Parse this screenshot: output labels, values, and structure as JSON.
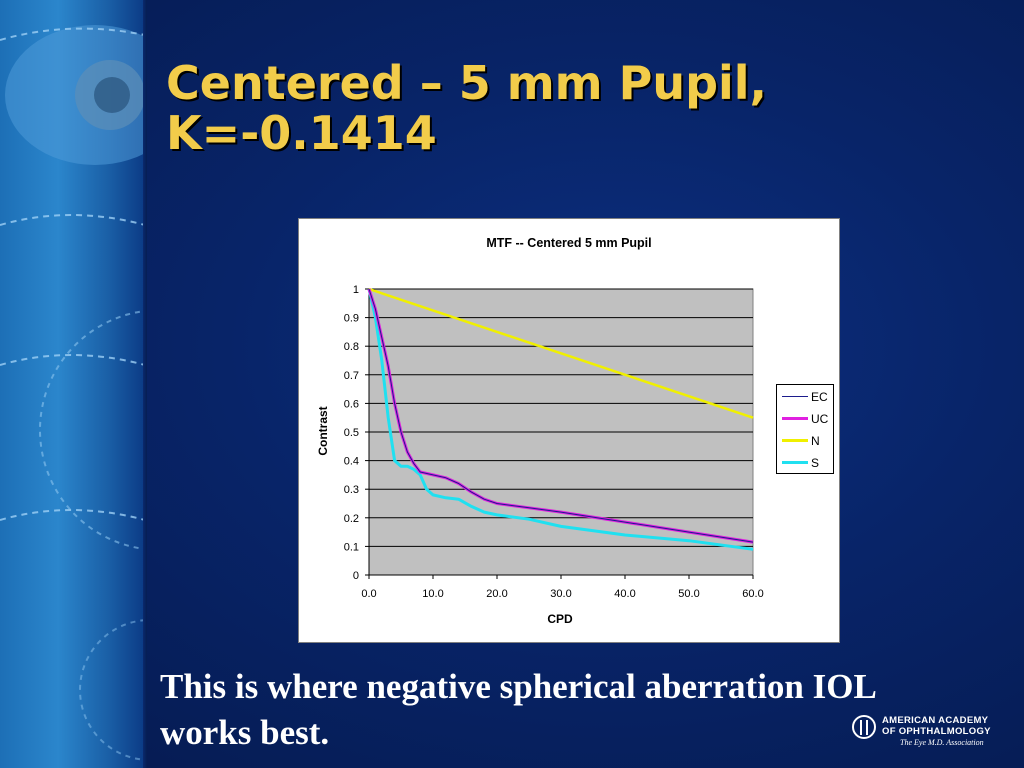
{
  "slide": {
    "title_line1": "Centered – 5 mm Pupil,",
    "title_line2": "K=-0.1414",
    "caption_line1": "This is where negative spherical aberration IOL",
    "caption_line2": "works best."
  },
  "logo": {
    "line1": "American Academy",
    "line2": "of Ophthalmology",
    "tagline": "The Eye M.D. Association"
  },
  "colors": {
    "title": "#f2cc4a",
    "plot_bg": "#c0c0c0",
    "EC": "#1c1c8c",
    "UC": "#e020e0",
    "N": "#f0f000",
    "S": "#20e0f0"
  },
  "chart_data": {
    "type": "line",
    "title": "MTF -- Centered 5 mm Pupil",
    "xlabel": "CPD",
    "ylabel": "Contrast",
    "xlim": [
      0,
      60
    ],
    "ylim": [
      0,
      1
    ],
    "xticks": [
      "0.0",
      "10.0",
      "20.0",
      "30.0",
      "40.0",
      "50.0",
      "60.0"
    ],
    "yticks": [
      "0",
      "0.1",
      "0.2",
      "0.3",
      "0.4",
      "0.5",
      "0.6",
      "0.7",
      "0.8",
      "0.9",
      "1"
    ],
    "grid": true,
    "legend_position": "right",
    "series": [
      {
        "name": "EC",
        "x": [
          0,
          1,
          2,
          3,
          4,
          5,
          6,
          7,
          8,
          10,
          12,
          14,
          16,
          18,
          20,
          25,
          30,
          40,
          50,
          60
        ],
        "y": [
          1.0,
          0.93,
          0.83,
          0.73,
          0.6,
          0.5,
          0.43,
          0.39,
          0.36,
          0.35,
          0.34,
          0.32,
          0.29,
          0.265,
          0.25,
          0.235,
          0.22,
          0.185,
          0.15,
          0.115
        ]
      },
      {
        "name": "UC",
        "x": [
          0,
          1,
          2,
          3,
          4,
          5,
          6,
          7,
          8,
          10,
          12,
          14,
          16,
          18,
          20,
          25,
          30,
          40,
          50,
          60
        ],
        "y": [
          1.0,
          0.93,
          0.83,
          0.73,
          0.6,
          0.5,
          0.43,
          0.39,
          0.36,
          0.35,
          0.34,
          0.32,
          0.29,
          0.265,
          0.25,
          0.235,
          0.22,
          0.185,
          0.15,
          0.115
        ]
      },
      {
        "name": "N",
        "x": [
          0,
          60
        ],
        "y": [
          1.0,
          0.55
        ]
      },
      {
        "name": "S",
        "x": [
          0,
          1,
          2,
          3,
          4,
          5,
          6,
          7,
          8,
          9,
          10,
          12,
          14,
          16,
          18,
          20,
          25,
          30,
          40,
          50,
          60
        ],
        "y": [
          1.0,
          0.9,
          0.75,
          0.55,
          0.4,
          0.38,
          0.38,
          0.37,
          0.35,
          0.3,
          0.28,
          0.27,
          0.265,
          0.24,
          0.22,
          0.21,
          0.195,
          0.17,
          0.14,
          0.12,
          0.09
        ]
      }
    ]
  }
}
